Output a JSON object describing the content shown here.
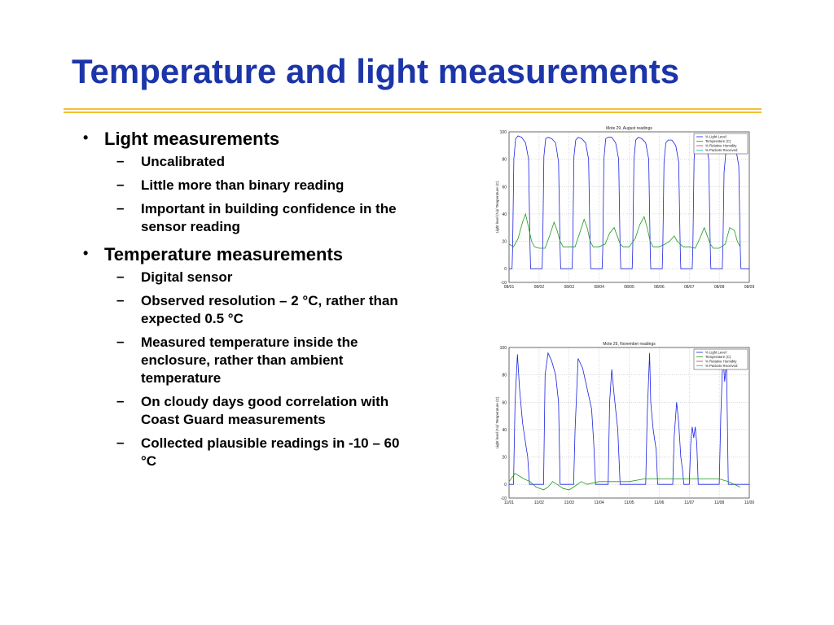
{
  "slide": {
    "title": "Temperature and light measurements",
    "accent_color": "#1c35a8",
    "rule_color": "#f2c12e"
  },
  "bullets": [
    {
      "text": "Light measurements",
      "sub": [
        "Uncalibrated",
        "Little more than binary reading",
        "Important in building confidence in the sensor reading"
      ]
    },
    {
      "text": "Temperature measurements",
      "sub": [
        "Digital sensor",
        "Observed resolution – 2 °C, rather than expected 0.5 °C",
        "Measured temperature inside the enclosure, rather than ambient temperature",
        "On cloudy days good correlation with Coast Guard measurements",
        "Collected plausible readings in -10 – 60 °C"
      ]
    }
  ],
  "bullet_marks": {
    "level1": "•",
    "level2": "–"
  },
  "chart_data": [
    {
      "type": "line",
      "title": "Mote 29, August readings",
      "ylabel": "Light level (%)/ Temperature (C)",
      "ylim": [
        -10,
        100
      ],
      "yticks": [
        -10,
        0,
        20,
        40,
        60,
        80,
        100
      ],
      "xlim": [
        0,
        8
      ],
      "xtick_labels": [
        "08/01",
        "08/02",
        "08/03",
        "08/04",
        "08/05",
        "08/06",
        "08/07",
        "08/08",
        "08/09"
      ],
      "legend": [
        "% Light Level",
        "Temperature (C)",
        "% Relative Humidity",
        "% Packets Received"
      ],
      "legend_position": "top-right",
      "colors": [
        "#1a22e0",
        "#1d9a1d",
        "#e0341a",
        "#1ab8c8"
      ],
      "series": [
        {
          "name": "% Light Level",
          "x": [
            0,
            0.1,
            0.12,
            0.16,
            0.22,
            0.3,
            0.42,
            0.55,
            0.65,
            0.7,
            0.72,
            1.1,
            1.12,
            1.16,
            1.22,
            1.3,
            1.42,
            1.55,
            1.65,
            1.7,
            1.72,
            2.1,
            2.12,
            2.16,
            2.22,
            2.3,
            2.42,
            2.55,
            2.65,
            2.7,
            2.72,
            3.1,
            3.12,
            3.16,
            3.22,
            3.3,
            3.42,
            3.55,
            3.65,
            3.7,
            3.72,
            4.1,
            4.12,
            4.16,
            4.22,
            4.3,
            4.42,
            4.55,
            4.65,
            4.7,
            4.72,
            5.1,
            5.12,
            5.16,
            5.22,
            5.3,
            5.42,
            5.55,
            5.65,
            5.7,
            5.72,
            6.1,
            6.12,
            6.16,
            6.22,
            6.3,
            6.42,
            6.55,
            6.65,
            6.7,
            6.72,
            7.1,
            7.12,
            7.16,
            7.22,
            7.3,
            7.42,
            7.55,
            7.65,
            7.7,
            7.72,
            8
          ],
          "y": [
            0,
            0,
            15,
            80,
            95,
            97,
            96,
            92,
            80,
            15,
            0,
            0,
            15,
            82,
            95,
            96,
            95,
            92,
            78,
            15,
            0,
            0,
            15,
            82,
            94,
            96,
            95,
            92,
            80,
            15,
            0,
            0,
            15,
            80,
            95,
            96,
            96,
            92,
            80,
            15,
            0,
            0,
            15,
            80,
            94,
            96,
            95,
            92,
            80,
            15,
            0,
            0,
            15,
            78,
            92,
            94,
            94,
            90,
            78,
            15,
            0,
            0,
            15,
            80,
            95,
            96,
            96,
            92,
            80,
            15,
            0,
            0,
            15,
            70,
            85,
            88,
            90,
            88,
            75,
            15,
            0,
            0
          ]
        },
        {
          "name": "Temperature (C)",
          "x": [
            0,
            0.15,
            0.3,
            0.45,
            0.55,
            0.65,
            0.75,
            0.85,
            1.0,
            1.2,
            1.35,
            1.5,
            1.6,
            1.7,
            1.8,
            2.0,
            2.2,
            2.35,
            2.5,
            2.6,
            2.7,
            2.8,
            3.0,
            3.2,
            3.35,
            3.5,
            3.6,
            3.7,
            3.8,
            4.0,
            4.2,
            4.35,
            4.5,
            4.6,
            4.7,
            4.8,
            5.0,
            5.2,
            5.35,
            5.5,
            5.6,
            5.7,
            5.8,
            6.0,
            6.2,
            6.35,
            6.5,
            6.6,
            6.7,
            6.8,
            7.0,
            7.2,
            7.35,
            7.5,
            7.6,
            7.7
          ],
          "y": [
            18,
            16,
            22,
            34,
            40,
            30,
            20,
            16,
            15,
            15,
            24,
            34,
            28,
            20,
            16,
            16,
            16,
            26,
            36,
            30,
            20,
            16,
            16,
            18,
            26,
            30,
            24,
            18,
            16,
            16,
            22,
            32,
            38,
            30,
            20,
            16,
            16,
            18,
            20,
            24,
            20,
            18,
            16,
            16,
            15,
            22,
            30,
            24,
            18,
            15,
            15,
            18,
            30,
            28,
            20,
            16
          ]
        }
      ]
    },
    {
      "type": "line",
      "title": "Mote 29, November readings",
      "ylabel": "Light level (%)/ Temperature (C)",
      "ylim": [
        -10,
        100
      ],
      "yticks": [
        -10,
        0,
        20,
        40,
        60,
        80,
        100
      ],
      "xlim": [
        0,
        8
      ],
      "xtick_labels": [
        "11/01",
        "11/02",
        "11/03",
        "11/04",
        "11/05",
        "11/06",
        "11/07",
        "11/08",
        "11/09"
      ],
      "legend": [
        "% Light Level",
        "Temperature (C)",
        "% Relative Humidity",
        "% Packets Received"
      ],
      "legend_position": "top-right",
      "colors": [
        "#1a22e0",
        "#1d9a1d",
        "#e0341a",
        "#1ab8c8"
      ],
      "series": [
        {
          "name": "% Light Level",
          "x": [
            0,
            0.15,
            0.2,
            0.28,
            0.35,
            0.45,
            0.55,
            0.62,
            0.68,
            1.15,
            1.2,
            1.3,
            1.42,
            1.55,
            1.65,
            1.7,
            2.15,
            2.2,
            2.3,
            2.45,
            2.6,
            2.75,
            2.82,
            2.88,
            3.3,
            3.35,
            3.42,
            3.5,
            3.62,
            3.7,
            4.55,
            4.6,
            4.68,
            4.72,
            4.8,
            4.9,
            4.95,
            5.45,
            5.5,
            5.58,
            5.65,
            5.72,
            5.78,
            5.82,
            6.0,
            6.05,
            6.1,
            6.15,
            6.2,
            6.25,
            6.3,
            7.0,
            7.05,
            7.12,
            7.18,
            7.24,
            7.3,
            8
          ],
          "y": [
            0,
            0,
            60,
            95,
            70,
            45,
            30,
            20,
            0,
            0,
            80,
            96,
            90,
            80,
            60,
            0,
            0,
            40,
            92,
            85,
            70,
            55,
            30,
            0,
            0,
            60,
            84,
            65,
            40,
            0,
            0,
            50,
            96,
            60,
            40,
            25,
            0,
            0,
            35,
            60,
            45,
            20,
            10,
            0,
            0,
            30,
            42,
            34,
            42,
            30,
            0,
            0,
            50,
            95,
            75,
            90,
            0,
            0
          ]
        },
        {
          "name": "Temperature (C)",
          "x": [
            0,
            0.2,
            0.35,
            0.5,
            0.7,
            0.9,
            1.15,
            1.3,
            1.45,
            1.6,
            1.8,
            2.0,
            2.15,
            2.4,
            2.6,
            3.0,
            3.5,
            4.0,
            4.5,
            5.0,
            5.5,
            6.0,
            6.5,
            7.0,
            7.3,
            7.5,
            7.7
          ],
          "y": [
            2,
            8,
            6,
            4,
            2,
            -2,
            -4,
            -2,
            2,
            0,
            -3,
            -4,
            -2,
            2,
            0,
            2,
            2,
            2,
            4,
            4,
            4,
            4,
            4,
            4,
            2,
            0,
            -2
          ]
        }
      ]
    }
  ]
}
